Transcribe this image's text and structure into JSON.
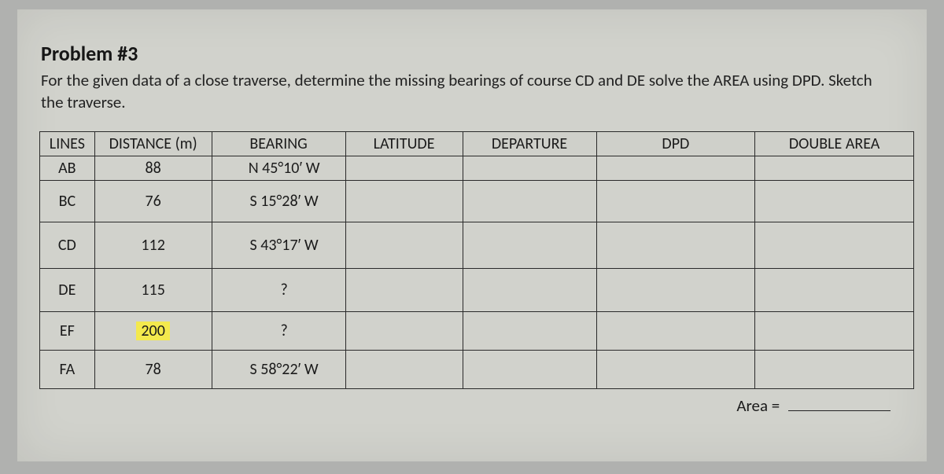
{
  "title": "Problem #3",
  "prompt": "For the given data of a close traverse, determine the missing bearings of course CD and DE solve the AREA using DPD. Sketch the traverse.",
  "columns": [
    "LINES",
    "DISTANCE (m)",
    "BEARING",
    "LATITUDE",
    "DEPARTURE",
    "DPD",
    "DOUBLE AREA"
  ],
  "rows": [
    {
      "line": "AB",
      "distance": "88",
      "bearing": "N 45°10′ W",
      "highlight": false
    },
    {
      "line": "BC",
      "distance": "76",
      "bearing": "S 15°28′ W",
      "highlight": false
    },
    {
      "line": "CD",
      "distance": "112",
      "bearing": "S 43°17′ W",
      "highlight": false
    },
    {
      "line": "DE",
      "distance": "115",
      "bearing": "?",
      "highlight": false
    },
    {
      "line": "EF",
      "distance": "200",
      "bearing": "?",
      "highlight": true
    },
    {
      "line": "FA",
      "distance": "78",
      "bearing": "S 58°22′ W",
      "highlight": false
    }
  ],
  "area_label": "Area =",
  "colors": {
    "page_bg": "#d1d2cc",
    "outer_bg": "#b0b1af",
    "border": "#2a2a2a",
    "text": "#1b1b1b",
    "highlight": "#f4e94d"
  }
}
